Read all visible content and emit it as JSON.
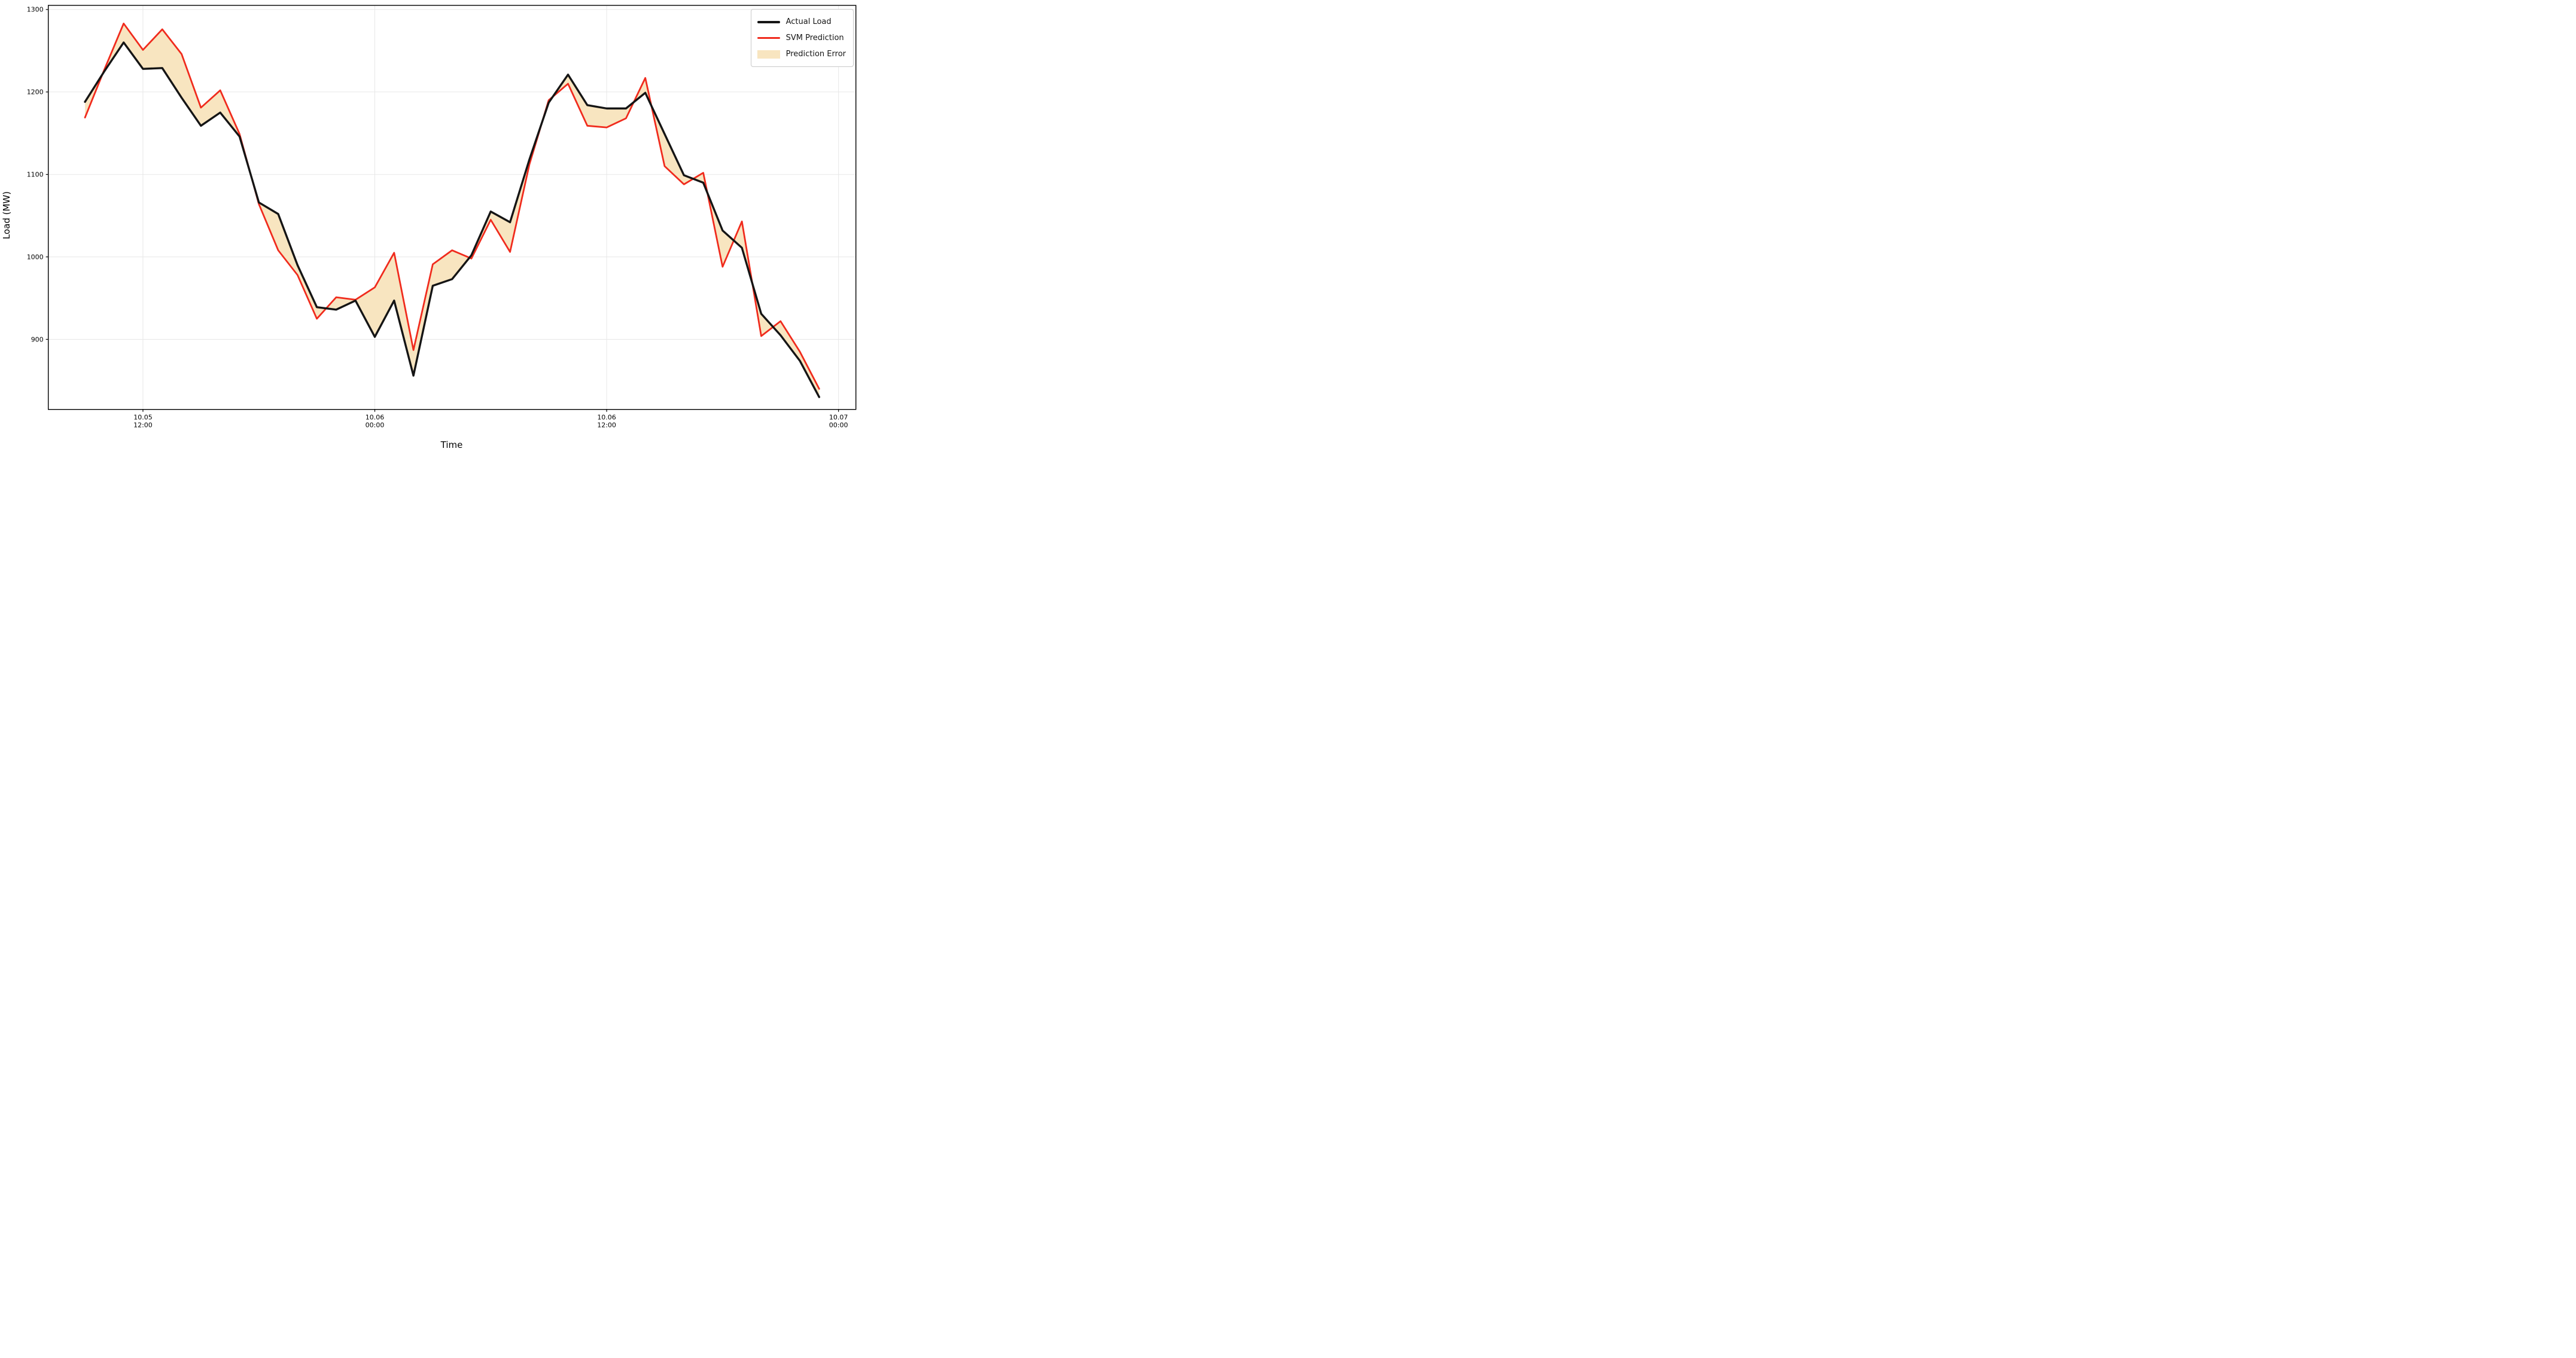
{
  "figure": {
    "background_color": "#ffffff",
    "xlabel": "Time",
    "ylabel": "Load (MW)"
  },
  "legend": {
    "entries": [
      {
        "label": "Actual Load",
        "kind": "line",
        "color": "#151515"
      },
      {
        "label": "SVM Prediction",
        "kind": "line",
        "color": "#f02b1d"
      },
      {
        "label": "Prediction Error",
        "kind": "patch",
        "color": "#f8e5c0"
      }
    ]
  },
  "chart_data": {
    "type": "line",
    "title": "",
    "xlabel": "Time",
    "ylabel": "Load (MW)",
    "grid": true,
    "legend_position": "upper right",
    "colors": {
      "actual": "#151515",
      "predicted": "#f02b1d",
      "error_fill": "#f8e5c0",
      "gridline": "#e7e7e7",
      "spine": "#000000"
    },
    "ylim": [
      815,
      1305
    ],
    "yticks": [
      900,
      1000,
      1100,
      1200,
      1300
    ],
    "xlim_hours": [
      -4.9,
      36.9
    ],
    "xticks": [
      {
        "hour": 0,
        "label_line1": "10.05",
        "label_line2": "12:00"
      },
      {
        "hour": 12,
        "label_line1": "10.06",
        "label_line2": "00:00"
      },
      {
        "hour": 24,
        "label_line1": "10.06",
        "label_line2": "12:00"
      },
      {
        "hour": 36,
        "label_line1": "10.07",
        "label_line2": "00:00"
      }
    ],
    "x_hours": [
      -3,
      -2,
      -1,
      0,
      1,
      2,
      3,
      4,
      5,
      6,
      7,
      8,
      9,
      10,
      11,
      12,
      13,
      14,
      15,
      16,
      17,
      18,
      19,
      20,
      21,
      22,
      23,
      24,
      25,
      26,
      27,
      28,
      29,
      30,
      31,
      32,
      33,
      34,
      35
    ],
    "series": [
      {
        "name": "Actual Load",
        "values": [
          1188,
          1225,
          1260,
          1228,
          1229,
          1193,
          1159,
          1175,
          1146,
          1066,
          1052,
          990,
          939,
          936,
          947,
          903,
          947,
          856,
          965,
          973,
          1002,
          1055,
          1042,
          1118,
          1187,
          1221,
          1184,
          1180,
          1180,
          1199,
          1149,
          1099,
          1090,
          1032,
          1011,
          931,
          905,
          874,
          830
        ]
      },
      {
        "name": "SVM Prediction",
        "values": [
          1169,
          1227,
          1283,
          1251,
          1276,
          1246,
          1181,
          1202,
          1149,
          1064,
          1008,
          978,
          925,
          951,
          948,
          963,
          1005,
          887,
          991,
          1008,
          998,
          1045,
          1006,
          1112,
          1190,
          1210,
          1159,
          1157,
          1168,
          1217,
          1110,
          1088,
          1102,
          988,
          1043,
          904,
          922,
          885,
          840
        ]
      }
    ],
    "fill_between_series": true
  }
}
